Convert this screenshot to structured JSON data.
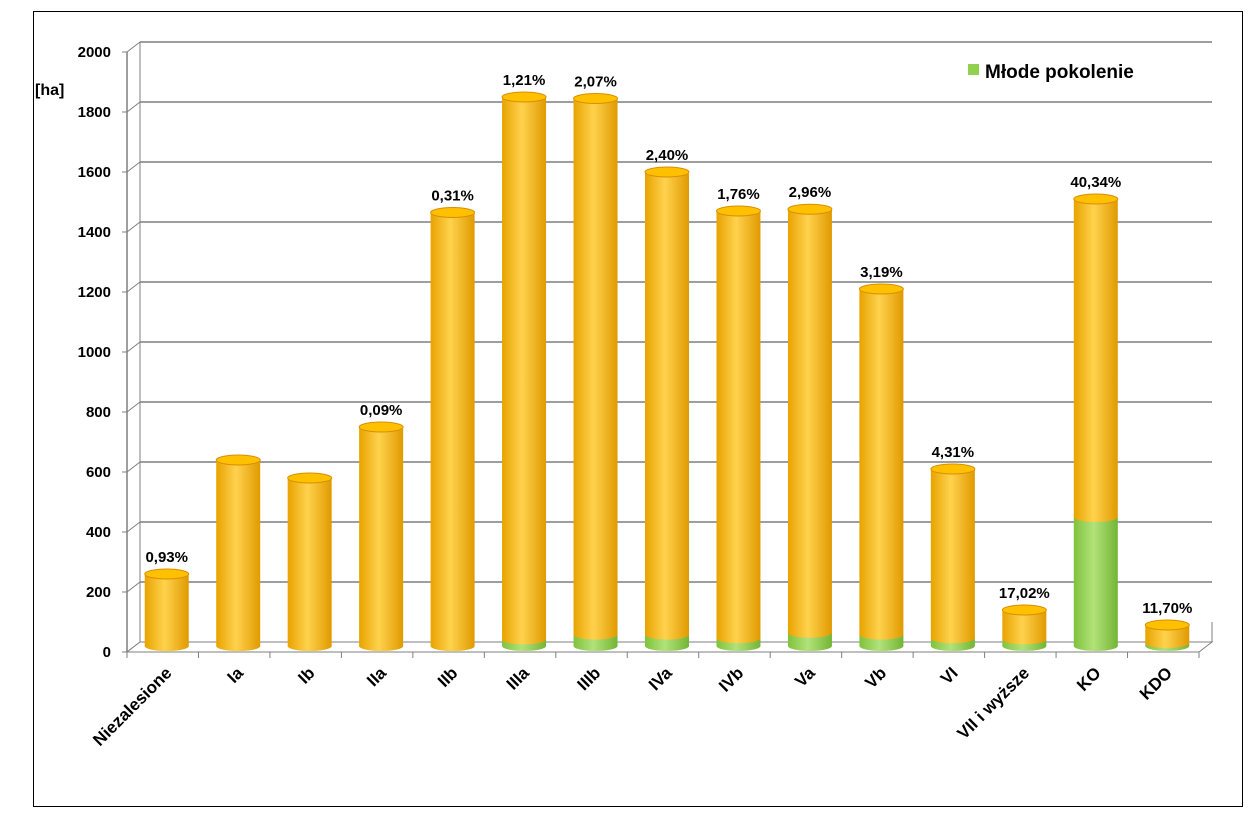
{
  "chart_data": {
    "type": "bar",
    "subtype": "stacked-3d-cylinder",
    "ylabel": "[ha]",
    "ylim": [
      0,
      2000
    ],
    "yticks": [
      0,
      200,
      400,
      600,
      800,
      1000,
      1200,
      1400,
      1600,
      1800,
      2000
    ],
    "grid": true,
    "legend_position": "top-right",
    "categories": [
      "Niezalesione",
      "Ia",
      "Ib",
      "IIa",
      "IIb",
      "IIIa",
      "IIIb",
      "IVa",
      "IVb",
      "Va",
      "Vb",
      "VI",
      "VII i wyższe",
      "KO",
      "KDO"
    ],
    "series": [
      {
        "name": "Młode pokolenie",
        "color": "#92d050",
        "values": [
          0,
          0,
          0,
          0,
          0,
          22,
          38,
          38,
          26,
          44,
          38,
          26,
          22,
          430,
          10
        ]
      },
      {
        "name": "",
        "color": "#ffc000",
        "values": [
          240,
          620,
          560,
          730,
          1445,
          1808,
          1787,
          1542,
          1424,
          1412,
          1152,
          564,
          98,
          1060,
          60
        ]
      }
    ],
    "data_labels": [
      "0,93%",
      "",
      "",
      "0,09%",
      "0,31%",
      "1,21%",
      "2,07%",
      "2,40%",
      "1,76%",
      "2,96%",
      "3,19%",
      "4,31%",
      "17,02%",
      "40,34%",
      "11,70%"
    ]
  },
  "colors": {
    "young": "#92d050",
    "young_dark": "#6fae2c",
    "old": "#ffc000",
    "old_dark": "#e09d00",
    "grid": "#7f7f7f"
  }
}
